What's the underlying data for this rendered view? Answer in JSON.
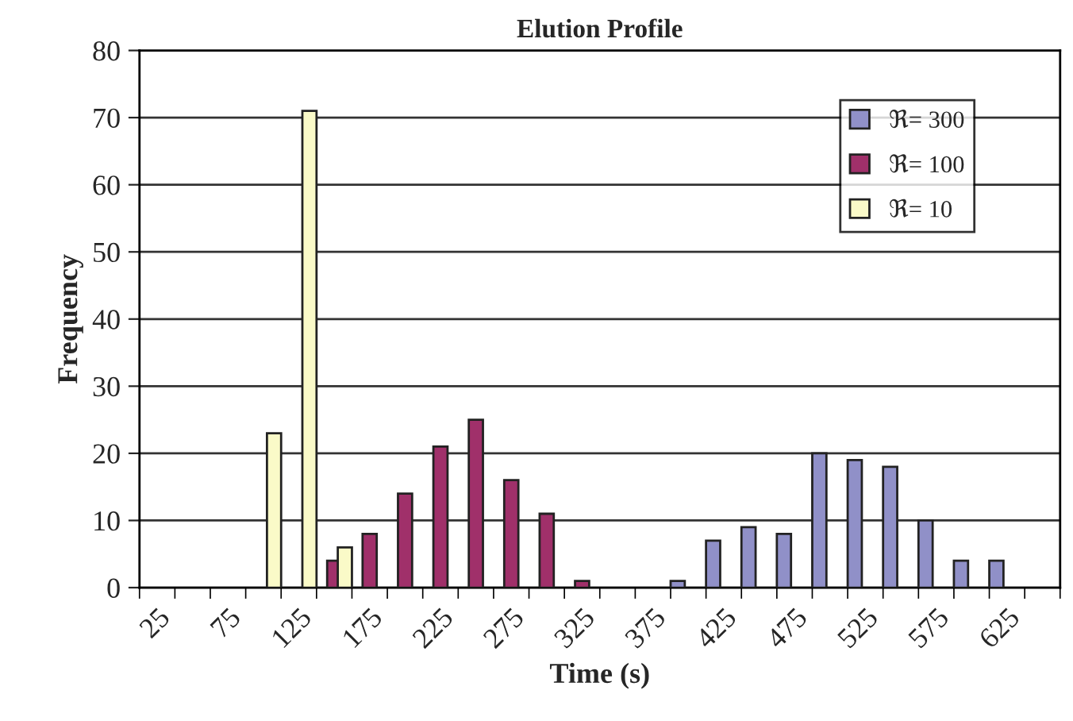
{
  "chart_data": {
    "type": "bar",
    "title": "Elution Profile",
    "xlabel": "Time (s)",
    "ylabel": "Frequency",
    "categories": [
      "25",
      null,
      "75",
      null,
      "125",
      null,
      "175",
      null,
      "225",
      null,
      "275",
      null,
      "325",
      null,
      "375",
      null,
      "425",
      null,
      "475",
      null,
      "525",
      null,
      "575",
      null,
      "625",
      null
    ],
    "series": [
      {
        "name": "ℜ= 300",
        "color": "#9090c8",
        "values": [
          null,
          null,
          null,
          null,
          null,
          null,
          null,
          null,
          null,
          null,
          null,
          null,
          null,
          null,
          null,
          1,
          7,
          9,
          8,
          20,
          19,
          18,
          10,
          4,
          4,
          null
        ]
      },
      {
        "name": "ℜ= 100",
        "color": "#a0306a",
        "values": [
          null,
          null,
          null,
          null,
          null,
          4,
          8,
          14,
          21,
          25,
          16,
          11,
          1,
          null,
          null,
          null,
          null,
          null,
          null,
          null,
          null,
          null,
          null,
          null,
          null,
          null
        ]
      },
      {
        "name": "ℜ= 10",
        "color": "#fafac8",
        "values": [
          null,
          null,
          null,
          23,
          71,
          6,
          null,
          null,
          null,
          null,
          null,
          null,
          null,
          null,
          null,
          null,
          null,
          null,
          null,
          null,
          null,
          null,
          null,
          null,
          null,
          null
        ]
      }
    ],
    "ylim": [
      0,
      80
    ],
    "yticks": [
      0,
      10,
      20,
      30,
      40,
      50,
      60,
      70,
      80
    ],
    "grid": "y",
    "legend": "top right"
  }
}
